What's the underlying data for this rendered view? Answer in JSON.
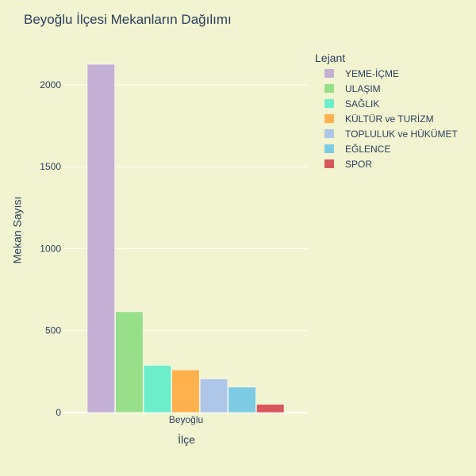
{
  "chart_data": {
    "type": "bar",
    "title": "Beyoğlu İlçesi Mekanların Dağılımı",
    "xlabel": "İlçe",
    "ylabel": "Mekan Sayısı",
    "categories": [
      "Beyoğlu"
    ],
    "ylim": [
      0,
      2130
    ],
    "yticks": [
      0,
      500,
      1000,
      1500,
      2000
    ],
    "grid": true,
    "legend_title": "Lejant",
    "legend_position": "right",
    "series": [
      {
        "name": "YEME-İÇME",
        "values": [
          2125
        ],
        "color": "#c5b0d5"
      },
      {
        "name": "ULAŞIM",
        "values": [
          615
        ],
        "color": "#98df8a"
      },
      {
        "name": "SAĞLIK",
        "values": [
          288
        ],
        "color": "#6ceecb"
      },
      {
        "name": "KÜLTÜR ve TURİZM",
        "values": [
          260
        ],
        "color": "#ffb14e"
      },
      {
        "name": "TOPLULUK ve HÜKÜMET",
        "values": [
          205
        ],
        "color": "#aec7e8"
      },
      {
        "name": "EĞLENCE",
        "values": [
          155
        ],
        "color": "#7ecbe4"
      },
      {
        "name": "SPOR",
        "values": [
          50
        ],
        "color": "#d8575b"
      }
    ]
  },
  "colors": {
    "background": "#f2f3d0",
    "gridline": "#ffffff",
    "text": "#2a3f5f"
  }
}
